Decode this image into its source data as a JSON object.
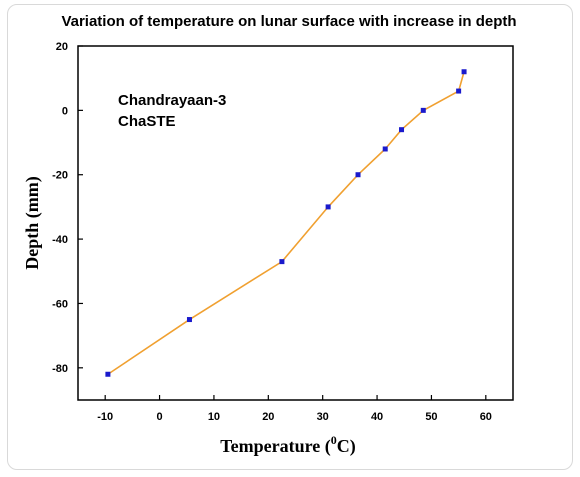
{
  "chart_data": {
    "type": "line",
    "title": "Variation of temperature on lunar surface with increase in depth",
    "xlabel": "Temperature (",
    "xlabel_super": "0",
    "xlabel_end": "C)",
    "ylabel": "Depth (mm)",
    "annotations": [
      "Chandrayaan-3",
      "ChaSTE"
    ],
    "xlim": [
      -15,
      65
    ],
    "ylim": [
      -90,
      20
    ],
    "x_ticks": [
      -10,
      0,
      10,
      20,
      30,
      40,
      50,
      60
    ],
    "y_ticks": [
      20,
      0,
      -20,
      -40,
      -60,
      -80
    ],
    "grid": false,
    "line_color": "#f0a030",
    "marker_color": "#1a1acc",
    "series": [
      {
        "points": [
          {
            "x": -9.5,
            "y": -82
          },
          {
            "x": 5.5,
            "y": -65
          },
          {
            "x": 22.5,
            "y": -47
          },
          {
            "x": 31,
            "y": -30
          },
          {
            "x": 36.5,
            "y": -20
          },
          {
            "x": 41.5,
            "y": -12
          },
          {
            "x": 44.5,
            "y": -6
          },
          {
            "x": 48.5,
            "y": 0
          },
          {
            "x": 55,
            "y": 6
          },
          {
            "x": 56,
            "y": 12
          }
        ]
      }
    ]
  }
}
